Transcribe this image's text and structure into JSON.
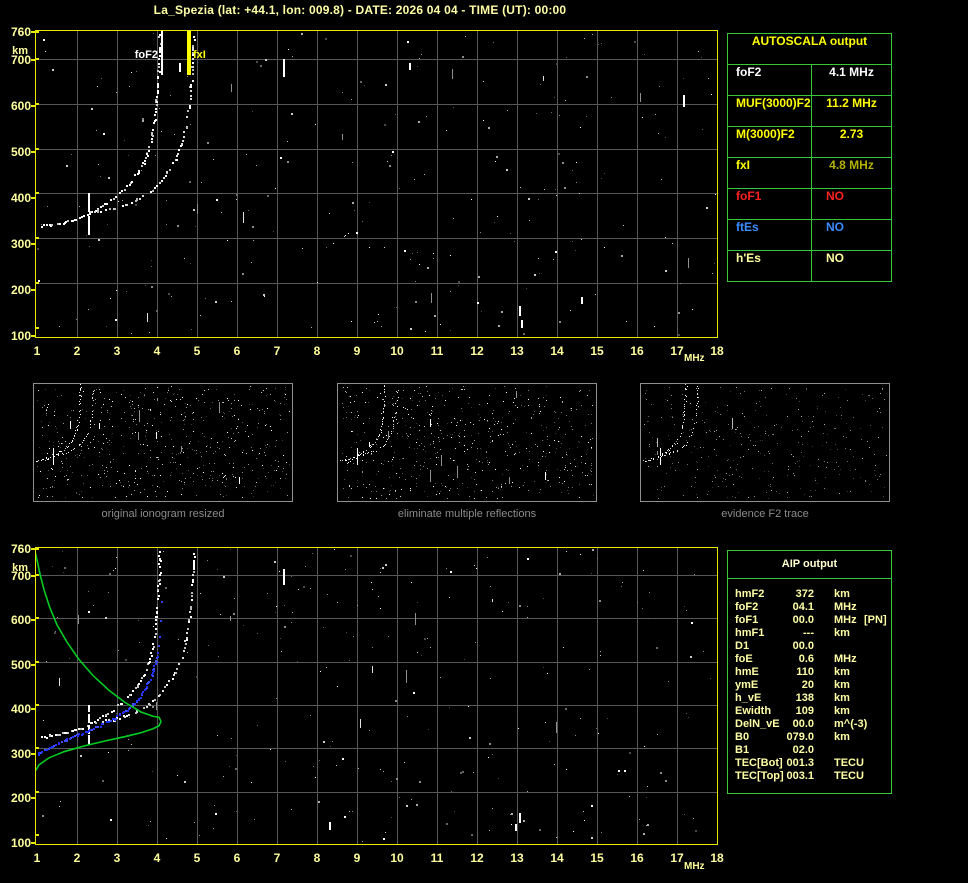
{
  "title": "La_Spezia (lat: +44.1, lon: 009.8) - DATE: 2026 04 04 - TIME (UT): 00:00",
  "colors": {
    "background": "#000000",
    "frame_yellow": "#e8e800",
    "pale_yellow": "#ffff9e",
    "grid_gray": "#585858",
    "green_border": "#35c935",
    "trace_white": "#ffffff",
    "profile_green": "#00cc22",
    "restored_blue": "#2030ff",
    "caption_gray": "#8c8c8c"
  },
  "plots": {
    "top": {
      "y_unit": "km",
      "x_unit": "MHz",
      "y_ticks": [
        {
          "label": "760",
          "km": 760
        },
        {
          "label": "700",
          "km": 700
        },
        {
          "label": "600",
          "km": 600
        },
        {
          "label": "500",
          "km": 500
        },
        {
          "label": "400",
          "km": 400
        },
        {
          "label": "300",
          "km": 300
        },
        {
          "label": "200",
          "km": 200
        },
        {
          "label": "100",
          "km": 100
        }
      ],
      "x_ticks": [
        "1",
        "2",
        "3",
        "4",
        "5",
        "6",
        "7",
        "8",
        "9",
        "10",
        "11",
        "12",
        "13",
        "14",
        "15",
        "16",
        "17",
        "18"
      ],
      "markers": [
        {
          "label": "foF2",
          "f": 4.1,
          "color": "#ffffff"
        },
        {
          "label": "fxI",
          "f": 4.8,
          "color": "#ffff00"
        }
      ]
    },
    "bottom": {
      "y_unit": "km",
      "x_unit": "MHz",
      "y_ticks": [
        {
          "label": "760",
          "km": 760
        },
        {
          "label": "700",
          "km": 700
        },
        {
          "label": "600",
          "km": 600
        },
        {
          "label": "500",
          "km": 500
        },
        {
          "label": "400",
          "km": 400
        },
        {
          "label": "300",
          "km": 300
        },
        {
          "label": "200",
          "km": 200
        },
        {
          "label": "100",
          "km": 100
        }
      ],
      "x_ticks": [
        "1",
        "2",
        "3",
        "4",
        "5",
        "6",
        "7",
        "8",
        "9",
        "10",
        "11",
        "12",
        "13",
        "14",
        "15",
        "16",
        "17",
        "18"
      ]
    }
  },
  "thumbnails": [
    {
      "caption": "original ionogram resized"
    },
    {
      "caption": "eliminate multiple reflections"
    },
    {
      "caption": "evidence F2 trace"
    }
  ],
  "autoscala": {
    "header": "AUTOSCALA output",
    "rows": [
      {
        "label": "foF2",
        "value": "4.1 MHz",
        "label_color": "#ffffff",
        "value_color": "#ffffff",
        "value_align": "center"
      },
      {
        "label": "MUF(3000)F2",
        "value": "11.2 MHz",
        "label_color": "#ffff00",
        "value_color": "#ffff00",
        "value_align": "center"
      },
      {
        "label": "M(3000)F2",
        "value": "2.73",
        "label_color": "#ffff00",
        "value_color": "#ffff00",
        "value_align": "center"
      },
      {
        "label": "fxI",
        "value": "4.8 MHz",
        "label_color": "#ffff00",
        "value_color": "#b2b200",
        "value_align": "center"
      },
      {
        "label": "foF1",
        "value": "NO",
        "label_color": "#ff2020",
        "value_color": "#ff2020",
        "value_align": "left"
      },
      {
        "label": "ftEs",
        "value": "NO",
        "label_color": "#3a8cff",
        "value_color": "#3a8cff",
        "value_align": "left"
      },
      {
        "label": "h'Es",
        "value": "NO",
        "label_color": "#ffff9e",
        "value_color": "#ffff9e",
        "value_align": "left"
      }
    ]
  },
  "aip": {
    "header": "AIP output",
    "rows": [
      {
        "name": "hmF2",
        "value": "372",
        "unit": "km",
        "extra": ""
      },
      {
        "name": "foF2",
        "value": "04.1",
        "unit": "MHz",
        "extra": ""
      },
      {
        "name": "foF1",
        "value": "00.0",
        "unit": "MHz",
        "extra": "[PN]"
      },
      {
        "name": "hmF1",
        "value": "---",
        "unit": "km",
        "extra": ""
      },
      {
        "name": "D1",
        "value": "00.0",
        "unit": "",
        "extra": ""
      },
      {
        "name": "foE",
        "value": "0.6",
        "unit": "MHz",
        "extra": ""
      },
      {
        "name": "hmE",
        "value": "110",
        "unit": "km",
        "extra": ""
      },
      {
        "name": "ymE",
        "value": "20",
        "unit": "km",
        "extra": ""
      },
      {
        "name": "h_vE",
        "value": "138",
        "unit": "km",
        "extra": ""
      },
      {
        "name": "Ewidth",
        "value": "109",
        "unit": "km",
        "extra": ""
      },
      {
        "name": "DelN_vE",
        "value": "00.0",
        "unit": "m^(-3)",
        "extra": ""
      },
      {
        "name": "B0",
        "value": "079.0",
        "unit": "km",
        "extra": ""
      },
      {
        "name": "B1",
        "value": "02.0",
        "unit": "",
        "extra": ""
      },
      {
        "name": "TEC[Bot]",
        "value": "001.3",
        "unit": "TECU",
        "extra": ""
      },
      {
        "name": "TEC[Top]",
        "value": "003.1",
        "unit": "TECU",
        "extra": ""
      }
    ]
  },
  "chart_data": {
    "type": "scatter",
    "xlabel": "MHz",
    "ylabel": "km",
    "xlim": [
      1,
      18
    ],
    "ylim": [
      100,
      760
    ],
    "grid": true,
    "o_trace": [
      [
        1.1,
        328
      ],
      [
        1.3,
        330
      ],
      [
        1.5,
        333
      ],
      [
        1.7,
        337
      ],
      [
        1.9,
        342
      ],
      [
        2.1,
        349
      ],
      [
        2.3,
        358
      ],
      [
        2.5,
        367
      ],
      [
        2.7,
        378
      ],
      [
        2.9,
        391
      ],
      [
        3.1,
        406
      ],
      [
        3.3,
        424
      ],
      [
        3.5,
        446
      ],
      [
        3.65,
        470
      ],
      [
        3.78,
        498
      ],
      [
        3.87,
        530
      ],
      [
        3.93,
        565
      ],
      [
        3.97,
        605
      ],
      [
        4.0,
        645
      ],
      [
        4.03,
        690
      ],
      [
        4.05,
        735
      ],
      [
        4.06,
        755
      ]
    ],
    "x_trace": [
      [
        2.35,
        360
      ],
      [
        2.6,
        363
      ],
      [
        2.9,
        368
      ],
      [
        3.2,
        376
      ],
      [
        3.5,
        388
      ],
      [
        3.8,
        404
      ],
      [
        4.05,
        424
      ],
      [
        4.25,
        448
      ],
      [
        4.45,
        478
      ],
      [
        4.6,
        512
      ],
      [
        4.7,
        550
      ],
      [
        4.78,
        592
      ],
      [
        4.83,
        638
      ],
      [
        4.87,
        685
      ],
      [
        4.89,
        725
      ],
      [
        4.9,
        750
      ]
    ],
    "spread": {
      "f": 2.28,
      "km_min": 315,
      "km_max": 400
    },
    "restored_trace_blue": [
      [
        1.0,
        289
      ],
      [
        1.2,
        300
      ],
      [
        1.45,
        312
      ],
      [
        1.7,
        320
      ],
      [
        2.0,
        331
      ],
      [
        2.3,
        344
      ],
      [
        2.6,
        356
      ],
      [
        2.9,
        370
      ],
      [
        3.2,
        388
      ],
      [
        3.5,
        412
      ],
      [
        3.7,
        440
      ],
      [
        3.85,
        470
      ],
      [
        3.95,
        500
      ],
      [
        4.0,
        520
      ]
    ],
    "restored_dots_blue": [
      [
        4.03,
        538
      ],
      [
        4.05,
        560
      ],
      [
        4.07,
        596
      ],
      [
        4.1,
        640
      ]
    ],
    "profile_green": [
      [
        0.95,
        755
      ],
      [
        1.0,
        735
      ],
      [
        1.08,
        700
      ],
      [
        1.18,
        665
      ],
      [
        1.32,
        625
      ],
      [
        1.5,
        585
      ],
      [
        1.75,
        545
      ],
      [
        2.05,
        505
      ],
      [
        2.4,
        468
      ],
      [
        2.8,
        434
      ],
      [
        3.2,
        406
      ],
      [
        3.6,
        384
      ],
      [
        3.9,
        374
      ],
      [
        4.05,
        372
      ],
      [
        4.1,
        362
      ],
      [
        4.05,
        352
      ],
      [
        3.9,
        345
      ],
      [
        3.6,
        336
      ],
      [
        3.2,
        327
      ],
      [
        2.7,
        317
      ],
      [
        2.2,
        306
      ],
      [
        1.7,
        293
      ],
      [
        1.3,
        278
      ],
      [
        1.05,
        262
      ],
      [
        0.97,
        249
      ]
    ],
    "foF2_MHz": 4.1,
    "fxI_MHz": 4.8,
    "hmF2_km": 372,
    "artifacts_top": [
      {
        "f": 7.15,
        "km": 700,
        "len": 18
      },
      {
        "f": 4.55,
        "km": 690,
        "len": 9
      },
      {
        "f": 13.05,
        "km": 150,
        "len": 10
      },
      {
        "f": 13.1,
        "km": 118,
        "len": 8
      },
      {
        "f": 17.15,
        "km": 620,
        "len": 12
      },
      {
        "f": 14.6,
        "km": 170,
        "len": 7
      },
      {
        "f": 10.3,
        "km": 690,
        "len": 7
      }
    ],
    "artifacts_bottom": [
      {
        "f": 7.15,
        "km": 715,
        "len": 16
      },
      {
        "f": 13.05,
        "km": 150,
        "len": 10
      },
      {
        "f": 4.9,
        "km": 735,
        "len": 10
      },
      {
        "f": 12.95,
        "km": 125,
        "len": 7
      },
      {
        "f": 8.3,
        "km": 130,
        "len": 8
      }
    ]
  }
}
